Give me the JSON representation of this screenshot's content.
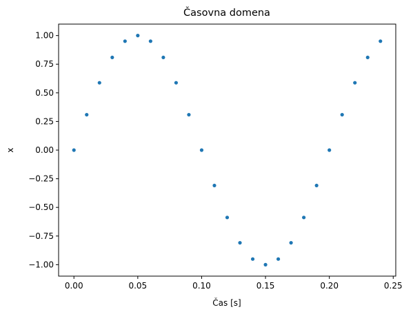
{
  "chart_data": {
    "type": "scatter",
    "title": "Časovna domena",
    "xlabel": "Čas [s]",
    "ylabel": "x",
    "xlim": [
      -0.012,
      0.252
    ],
    "ylim": [
      -1.1,
      1.1
    ],
    "xticks": [
      0.0,
      0.05,
      0.1,
      0.15,
      0.2,
      0.25
    ],
    "xtick_labels": [
      "0.00",
      "0.05",
      "0.10",
      "0.15",
      "0.20",
      "0.25"
    ],
    "yticks": [
      -1.0,
      -0.75,
      -0.5,
      -0.25,
      0.0,
      0.25,
      0.5,
      0.75,
      1.0
    ],
    "ytick_labels": [
      "−1.00",
      "−0.75",
      "−0.50",
      "−0.25",
      "0.00",
      "0.25",
      "0.50",
      "0.75",
      "1.00"
    ],
    "grid": false,
    "marker_color": "#1f77b4",
    "series": [
      {
        "x": [
          0.0,
          0.01,
          0.02,
          0.03,
          0.04,
          0.05,
          0.06,
          0.07,
          0.08,
          0.09,
          0.1,
          0.11,
          0.12,
          0.13,
          0.14,
          0.15,
          0.16,
          0.17,
          0.18,
          0.19,
          0.2,
          0.21,
          0.22,
          0.23,
          0.24
        ],
        "y": [
          0.0,
          0.309,
          0.588,
          0.809,
          0.951,
          1.0,
          0.951,
          0.809,
          0.588,
          0.309,
          0.0,
          -0.309,
          -0.588,
          -0.809,
          -0.951,
          -1.0,
          -0.951,
          -0.809,
          -0.588,
          -0.309,
          0.0,
          0.309,
          0.588,
          0.809,
          0.951
        ]
      }
    ]
  }
}
